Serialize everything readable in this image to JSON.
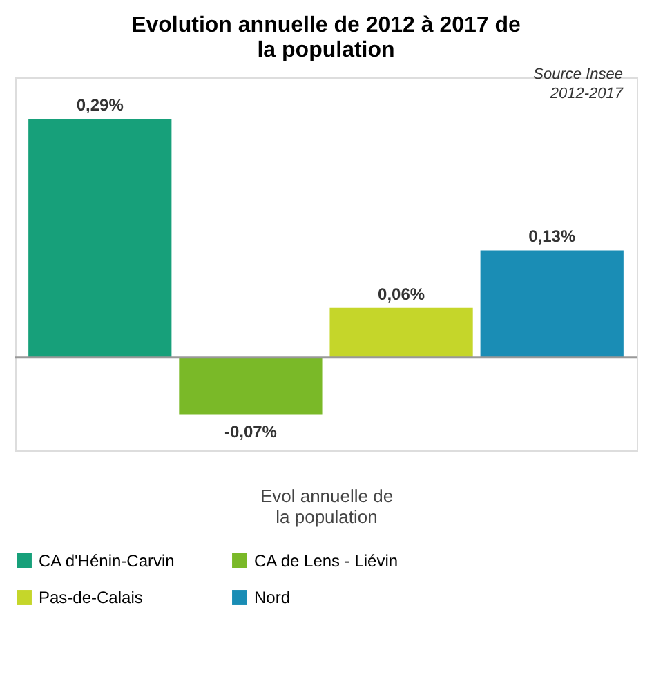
{
  "chart_data": {
    "type": "bar",
    "title": "Evolution annuelle de 2012 à 2017 de la population",
    "categories": [
      null
    ],
    "xlabel": "Evol annuelle de la population",
    "series": [
      {
        "name": "CA d'Hénin-Carvin",
        "color": "#17a07a",
        "values": [
          0.29
        ],
        "value_labels": [
          "0,29%"
        ]
      },
      {
        "name": "CA de Lens - Liévin",
        "color": "#7ab928",
        "values": [
          -0.07
        ],
        "value_labels": [
          "-0,07%"
        ]
      },
      {
        "name": "Pas-de-Calais",
        "color": "#c5d62a",
        "values": [
          0.06
        ],
        "value_labels": [
          "0,06%"
        ]
      },
      {
        "name": "Nord",
        "color": "#1a8db5",
        "values": [
          0.13
        ],
        "value_labels": [
          "0,13%"
        ]
      }
    ],
    "annotations": [
      "Source Insee 2012-2017"
    ],
    "legend": "bottom",
    "grid": false
  }
}
